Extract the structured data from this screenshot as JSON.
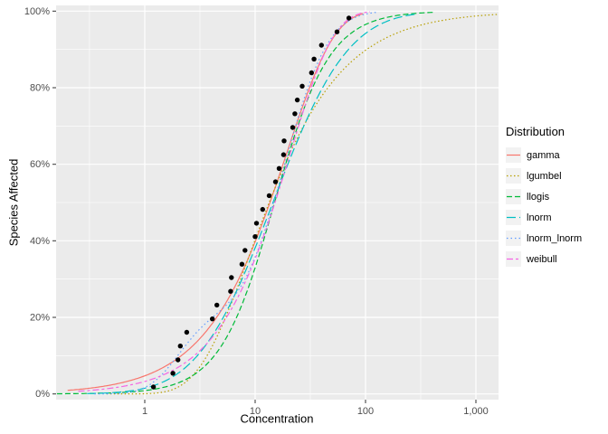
{
  "figure": {
    "x_axis_title": "Concentration",
    "y_axis_title": "Species Affected",
    "legend_title": "Distribution"
  },
  "chart_data": {
    "type": "line",
    "subtype": "species-sensitivity-distribution-cdf-with-empirical-points",
    "title": "",
    "xlabel": "Concentration",
    "ylabel": "Species Affected",
    "x_scale": "log10",
    "x_domain_log10": [
      -0.803,
      3.205
    ],
    "y_domain_percent": [
      -1.5,
      101.5
    ],
    "grid": true,
    "legend": {
      "title": "Distribution",
      "position": "right"
    },
    "style": {
      "panel_bg": "#EBEBEB",
      "grid_color": "#FFFFFF",
      "point_color": "#000000",
      "tick_color": "#333333",
      "tick_label_color": "#4D4D4D"
    },
    "x_axis": {
      "ticks": [
        {
          "value": 1,
          "label": "1"
        },
        {
          "value": 10,
          "label": "10"
        },
        {
          "value": 100,
          "label": "100"
        },
        {
          "value": 1000,
          "label": "1,000"
        }
      ],
      "minor": [
        0.316,
        3.162,
        31.62,
        316.2
      ]
    },
    "y_axis": {
      "ticks": [
        {
          "value": 0,
          "label": "0%"
        },
        {
          "value": 20,
          "label": "20%"
        },
        {
          "value": 40,
          "label": "40%"
        },
        {
          "value": 60,
          "label": "60%"
        },
        {
          "value": 80,
          "label": "80%"
        },
        {
          "value": 100,
          "label": "100%"
        }
      ],
      "minor": [
        10,
        30,
        50,
        70,
        90
      ]
    },
    "points": {
      "name": "empirical-cdf-points",
      "color": "#000000",
      "x": [
        1.2,
        1.8,
        2.0,
        2.1,
        2.4,
        4.1,
        4.5,
        6.0,
        6.1,
        7.6,
        8.1,
        10.0,
        10.3,
        11.7,
        13.4,
        15.3,
        16.5,
        18.1,
        18.3,
        21.9,
        22.9,
        24.1,
        26.7,
        32.4,
        34.2,
        39.9,
        55.2,
        70.7
      ],
      "y_percent": [
        1.8,
        5.4,
        8.9,
        12.5,
        16.1,
        19.6,
        23.2,
        26.8,
        30.4,
        33.9,
        37.5,
        41.1,
        44.6,
        48.2,
        51.8,
        55.4,
        58.9,
        62.5,
        66.1,
        69.6,
        73.2,
        76.8,
        80.4,
        83.9,
        87.5,
        91.1,
        94.6,
        98.2
      ]
    },
    "series": [
      {
        "name": "gamma",
        "color": "#F8766D",
        "dash": "solid",
        "model": "weibull",
        "params": {
          "shape": 1.02,
          "scale": 19.5
        },
        "range": [
          0.2,
          95
        ]
      },
      {
        "name": "lgumbel",
        "color": "#B79F00",
        "dash": "1.5,2.5",
        "model": "lgumbel",
        "params": {
          "locationlog": 2.2,
          "scalelog": 1.08
        },
        "range": [
          0.45,
          1600
        ]
      },
      {
        "name": "llogis",
        "color": "#00BA38",
        "dash": "6,3",
        "model": "llogis",
        "params": {
          "shape": 1.75,
          "scale": 15
        },
        "range": [
          0.16,
          420
        ]
      },
      {
        "name": "lnorm",
        "color": "#00BFC4",
        "dash": "10,4",
        "model": "lnorm",
        "params": {
          "meanlog": 2.674,
          "sdlog": 1.23
        },
        "range": [
          0.3,
          300
        ]
      },
      {
        "name": "lnorm_lnorm",
        "color": "#619CFF",
        "dash": "1.5,3",
        "model": "lnorm_lnorm",
        "params": {
          "pmix": 0.2,
          "meanlog1": 0.693,
          "sdlog1": 0.5,
          "meanlog2": 2.918,
          "sdlog2": 0.72
        },
        "range": [
          0.35,
          125
        ]
      },
      {
        "name": "weibull",
        "color": "#F564E3",
        "dash": "7,3,3,3",
        "model": "weibull",
        "params": {
          "shape": 1.12,
          "scale": 21
        },
        "range": [
          0.25,
          110
        ]
      }
    ]
  }
}
